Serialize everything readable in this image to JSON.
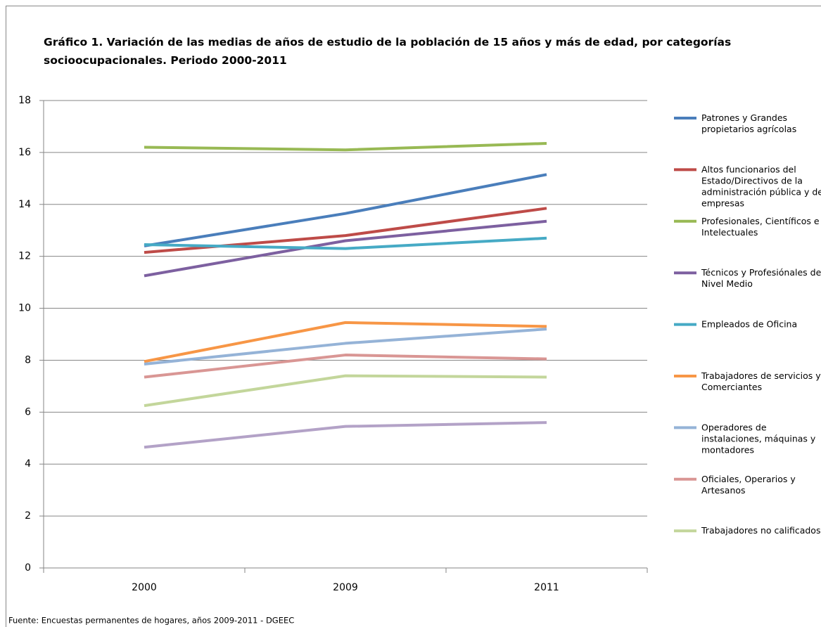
{
  "chart_data": {
    "type": "line",
    "title": "Gráfico 1. Variación de las medias de años de estudio de la población de 15 años y más de edad, por categorías socioocupacionales. Periodo 2000-2011",
    "source": "Fuente: Encuestas permanentes de hogares, años 2009-2011 - DGEEC",
    "categories": [
      "2000",
      "2009",
      "2011"
    ],
    "ylim": [
      0,
      18
    ],
    "yticks": [
      0,
      2,
      4,
      6,
      8,
      10,
      12,
      14,
      16,
      18
    ],
    "grid": true,
    "series": [
      {
        "name": "Patrones y Grandes propietarios agrícolas",
        "color": "#4a7ebb",
        "values": [
          12.4,
          13.65,
          15.15
        ]
      },
      {
        "name": "Altos funcionarios del Estado/Directivos de la administración pública y de empresas",
        "color": "#be4b48",
        "values": [
          12.15,
          12.8,
          13.85
        ]
      },
      {
        "name": "Profesionales, Científicos e Intelectuales",
        "color": "#98b954",
        "values": [
          16.2,
          16.1,
          16.35
        ]
      },
      {
        "name": "Técnicos y Profesiónales de Nivel Medio",
        "color": "#7d60a0",
        "values": [
          11.25,
          12.6,
          13.35
        ]
      },
      {
        "name": "Empleados de Oficina",
        "color": "#46aac5",
        "values": [
          12.45,
          12.3,
          12.7
        ]
      },
      {
        "name": "Trabajadores de servicios y Comerciantes",
        "color": "#f79646",
        "values": [
          7.95,
          9.45,
          9.3
        ]
      },
      {
        "name": "Operadores de instalaciones, máquinas y montadores",
        "color": "#95b3d7",
        "values": [
          7.85,
          8.65,
          9.2
        ]
      },
      {
        "name": "Oficiales, Operarios y Artesanos",
        "color": "#d99694",
        "values": [
          7.35,
          8.2,
          8.05
        ]
      },
      {
        "name": "Trabajadores no calificados",
        "color": "#c3d69b",
        "values": [
          6.25,
          7.4,
          7.35
        ]
      },
      {
        "name": null,
        "color": "#b3a2c7",
        "values": [
          4.65,
          5.45,
          5.6
        ]
      }
    ]
  }
}
